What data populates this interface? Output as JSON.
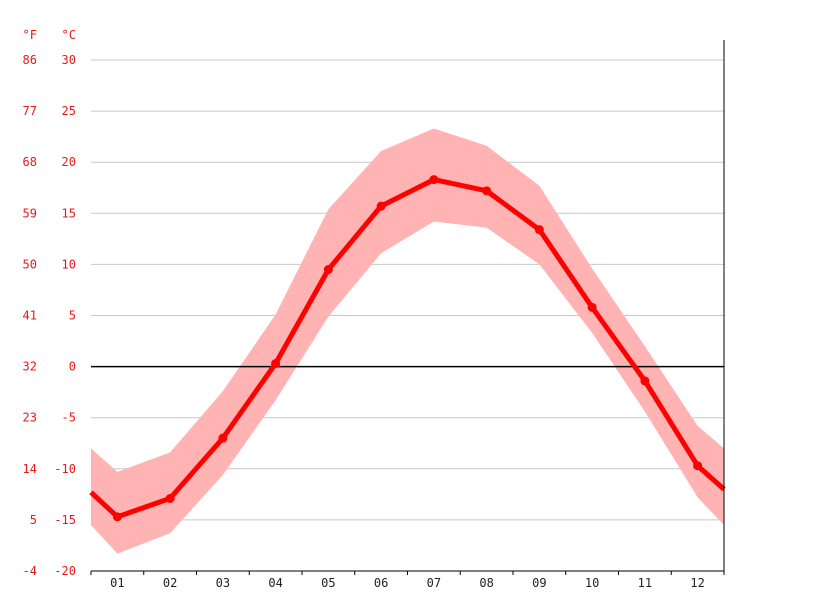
{
  "chart_data": {
    "type": "line",
    "unit_labels": {
      "fahrenheit": "°F",
      "celsius": "°C"
    },
    "categories": [
      "01",
      "02",
      "03",
      "04",
      "05",
      "06",
      "07",
      "08",
      "09",
      "10",
      "11",
      "12"
    ],
    "series": [
      {
        "values": [
          -14.7,
          -12.9,
          -7.0,
          0.3,
          9.5,
          15.7,
          18.3,
          17.2,
          13.4,
          5.8,
          -1.4,
          -9.7
        ]
      }
    ],
    "range_band": {
      "max": [
        -10.3,
        -8.4,
        -2.4,
        5.1,
        15.4,
        21.1,
        23.3,
        21.6,
        17.7,
        9.6,
        2.0,
        -5.8
      ],
      "min": [
        -18.3,
        -16.3,
        -10.6,
        -3.3,
        4.9,
        11.1,
        14.2,
        13.6,
        10.0,
        3.3,
        -4.4,
        -12.8
      ]
    },
    "edge_values": {
      "start": {
        "value": -12.3,
        "max": -8.0,
        "min": -15.5
      },
      "end": {
        "value": -12.0,
        "max": -8.0,
        "min": -15.5
      }
    },
    "ylim": [
      -20,
      30
    ],
    "y_ticks_celsius": [
      "30",
      "25",
      "20",
      "15",
      "10",
      "5",
      "0",
      "-5",
      "-10",
      "-15",
      "-20"
    ],
    "y_ticks_fahrenheit": [
      "86",
      "77",
      "68",
      "59",
      "50",
      "41",
      "32",
      "23",
      "14",
      "5",
      "-4"
    ],
    "grid": true,
    "colors": {
      "line": "#ff0000",
      "band": "#ffb3b3",
      "grid": "#c8c8c8",
      "zero_line": "#000000",
      "tick_text": "#e8191a"
    }
  }
}
